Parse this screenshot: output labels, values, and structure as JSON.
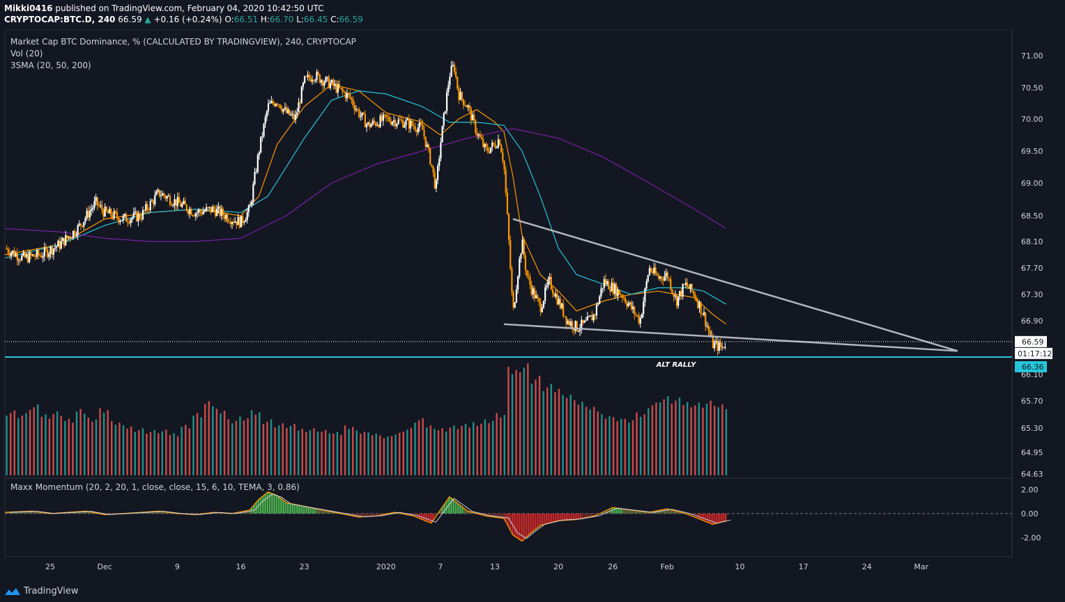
{
  "header": {
    "author": "Mikki0416",
    "published_text": "published on TradingView.com, February 04, 2020 10:42:50 UTC"
  },
  "symbol_line": {
    "symbol": "CRYPTOCAP:BTC.D, 240",
    "last": "66.59",
    "change": "+0.16 (+0.24%)",
    "o_label": "O:",
    "o_value": "66.51",
    "h_label": "H:",
    "h_value": "66.70",
    "l_label": "L:",
    "l_value": "66.45",
    "c_label": "C:",
    "c_value": "66.59"
  },
  "legend": {
    "main_title": "Market Cap BTC Dominance, % (CALCULATED BY TRADINGVIEW), 240, CRYPTOCAP",
    "vol": "Vol (20)",
    "sma": "3SMA (20, 50, 200)",
    "momentum": "Maxx Momentum (20, 2, 20, 1, close, close, 15, 6, 10, TEMA, 3, 0.86)"
  },
  "annotation": "ALT RALLY",
  "price_labels": {
    "last": "66.59",
    "countdown": "01:17:12",
    "level": "66.36"
  },
  "footer": {
    "brand": "TradingView"
  },
  "colors": {
    "background": "#131722",
    "up_candle": "#ffffff",
    "down_candle": "#ff9800",
    "sma20": "#ff9800",
    "sma50": "#26c6da",
    "sma200": "#7b1fa2",
    "support_line": "#26c6da",
    "trendline": "#b2b5be",
    "vol_up": "#26a69a",
    "vol_down": "#ef5350"
  },
  "chart_data": [
    {
      "type": "candlestick",
      "title": "Market Cap BTC Dominance, % (CALCULATED BY TRADINGVIEW), 240, CRYPTOCAP",
      "xlabel": "",
      "ylabel": "",
      "x_ticks": [
        "25",
        "Dec",
        "9",
        "16",
        "23",
        "2020",
        "7",
        "13",
        "20",
        "26",
        "Feb",
        "10",
        "17",
        "24",
        "Mar"
      ],
      "x_tick_days": [
        -6,
        0,
        8,
        15,
        22,
        31,
        37,
        43,
        50,
        56,
        62,
        70,
        77,
        84,
        90
      ],
      "x_range_days": [
        -11,
        100
      ],
      "y_ticks": [
        71.0,
        70.5,
        70.0,
        69.5,
        69.0,
        68.5,
        68.1,
        67.7,
        67.3,
        66.9,
        66.1,
        65.7,
        65.3,
        64.95,
        64.63
      ],
      "ylim": [
        64.63,
        71.3
      ],
      "close_path_day_value": [
        [
          -11,
          68.0
        ],
        [
          -9,
          67.85
        ],
        [
          -7,
          67.9
        ],
        [
          -5,
          68.05
        ],
        [
          -3,
          68.3
        ],
        [
          -1,
          68.7
        ],
        [
          0,
          68.55
        ],
        [
          2,
          68.45
        ],
        [
          4,
          68.5
        ],
        [
          6,
          68.85
        ],
        [
          8,
          68.7
        ],
        [
          10,
          68.55
        ],
        [
          12,
          68.6
        ],
        [
          14,
          68.45
        ],
        [
          15,
          68.4
        ],
        [
          16,
          68.6
        ],
        [
          17,
          69.5
        ],
        [
          18,
          70.2
        ],
        [
          19,
          70.3
        ],
        [
          20,
          70.1
        ],
        [
          21,
          70.0
        ],
        [
          22,
          70.6
        ],
        [
          23,
          70.7
        ],
        [
          25,
          70.55
        ],
        [
          27,
          70.35
        ],
        [
          28,
          70.1
        ],
        [
          29,
          69.9
        ],
        [
          31,
          70.0
        ],
        [
          33,
          69.95
        ],
        [
          35,
          69.85
        ],
        [
          36,
          69.3
        ],
        [
          36.5,
          68.9
        ],
        [
          37,
          69.6
        ],
        [
          38,
          70.7
        ],
        [
          38.5,
          70.85
        ],
        [
          39,
          70.4
        ],
        [
          40,
          70.2
        ],
        [
          41,
          69.8
        ],
        [
          42,
          69.5
        ],
        [
          43,
          69.6
        ],
        [
          43.5,
          69.7
        ],
        [
          44,
          69.3
        ],
        [
          44.5,
          68.2
        ],
        [
          45,
          67.0
        ],
        [
          45.5,
          67.6
        ],
        [
          46,
          68.1
        ],
        [
          46.5,
          67.6
        ],
        [
          47,
          67.4
        ],
        [
          48,
          67.1
        ],
        [
          49,
          67.5
        ],
        [
          50,
          67.2
        ],
        [
          51,
          66.9
        ],
        [
          52,
          66.8
        ],
        [
          53,
          66.85
        ],
        [
          54,
          67.0
        ],
        [
          55,
          67.5
        ],
        [
          56,
          67.4
        ],
        [
          57,
          67.3
        ],
        [
          58,
          67.1
        ],
        [
          59,
          66.9
        ],
        [
          60,
          67.7
        ],
        [
          61,
          67.55
        ],
        [
          62,
          67.6
        ],
        [
          63,
          67.2
        ],
        [
          64,
          67.45
        ],
        [
          65,
          67.3
        ],
        [
          66,
          67.0
        ],
        [
          67,
          66.55
        ],
        [
          68,
          66.5
        ],
        [
          68.5,
          66.59
        ]
      ],
      "series": [
        {
          "name": "SMA 20",
          "values_day_value": [
            [
              -11,
              67.9
            ],
            [
              -5,
              68.05
            ],
            [
              0,
              68.45
            ],
            [
              5,
              68.55
            ],
            [
              10,
              68.6
            ],
            [
              15,
              68.5
            ],
            [
              17,
              68.8
            ],
            [
              19,
              69.6
            ],
            [
              22,
              70.2
            ],
            [
              25,
              70.55
            ],
            [
              28,
              70.45
            ],
            [
              31,
              70.1
            ],
            [
              35,
              69.95
            ],
            [
              37,
              69.75
            ],
            [
              39,
              70.0
            ],
            [
              41,
              70.15
            ],
            [
              43,
              69.95
            ],
            [
              44,
              69.8
            ],
            [
              45,
              69.1
            ],
            [
              46,
              68.2
            ],
            [
              48,
              67.6
            ],
            [
              50,
              67.35
            ],
            [
              52,
              67.05
            ],
            [
              55,
              67.2
            ],
            [
              58,
              67.3
            ],
            [
              61,
              67.35
            ],
            [
              63,
              67.3
            ],
            [
              65,
              67.25
            ],
            [
              67,
              67.0
            ],
            [
              68.5,
              66.85
            ]
          ]
        },
        {
          "name": "SMA 50",
          "values_day_value": [
            [
              -11,
              67.85
            ],
            [
              -5,
              68.05
            ],
            [
              0,
              68.35
            ],
            [
              5,
              68.55
            ],
            [
              10,
              68.6
            ],
            [
              15,
              68.55
            ],
            [
              18,
              68.8
            ],
            [
              22,
              69.7
            ],
            [
              25,
              70.3
            ],
            [
              28,
              70.45
            ],
            [
              31,
              70.4
            ],
            [
              35,
              70.2
            ],
            [
              38,
              69.95
            ],
            [
              41,
              69.95
            ],
            [
              44,
              69.9
            ],
            [
              46,
              69.5
            ],
            [
              48,
              68.8
            ],
            [
              50,
              68.0
            ],
            [
              52,
              67.6
            ],
            [
              55,
              67.45
            ],
            [
              58,
              67.3
            ],
            [
              61,
              67.4
            ],
            [
              64,
              67.4
            ],
            [
              66,
              67.35
            ],
            [
              68.5,
              67.15
            ]
          ]
        },
        {
          "name": "SMA 200",
          "values_day_value": [
            [
              -11,
              68.3
            ],
            [
              -5,
              68.25
            ],
            [
              0,
              68.15
            ],
            [
              5,
              68.1
            ],
            [
              10,
              68.1
            ],
            [
              15,
              68.15
            ],
            [
              20,
              68.5
            ],
            [
              25,
              69.0
            ],
            [
              30,
              69.3
            ],
            [
              35,
              69.5
            ],
            [
              40,
              69.7
            ],
            [
              45,
              69.85
            ],
            [
              50,
              69.7
            ],
            [
              55,
              69.4
            ],
            [
              60,
              69.0
            ],
            [
              65,
              68.6
            ],
            [
              68.5,
              68.3
            ]
          ]
        }
      ],
      "trendlines_day_value": [
        {
          "name": "upper",
          "from": [
            45,
            68.45
          ],
          "to": [
            94,
            66.45
          ]
        },
        {
          "name": "lower",
          "from": [
            44,
            66.85
          ],
          "to": [
            94,
            66.45
          ]
        }
      ],
      "horizontal_level": 66.36,
      "last_price": 66.59
    },
    {
      "type": "bar",
      "title": "Vol (20)",
      "values_relative": [
        0.58,
        0.55,
        0.62,
        0.55,
        0.57,
        0.5,
        0.58,
        0.52,
        0.6,
        0.48,
        0.44,
        0.42,
        0.4,
        0.4,
        0.38,
        0.45,
        0.55,
        0.65,
        0.6,
        0.5,
        0.52,
        0.57,
        0.5,
        0.46,
        0.45,
        0.42,
        0.42,
        0.4,
        0.38,
        0.45,
        0.4,
        0.38,
        0.35,
        0.38,
        0.42,
        0.5,
        0.45,
        0.42,
        0.44,
        0.45,
        0.48,
        0.5,
        0.55,
        0.95,
        1.0,
        0.88,
        0.8,
        0.78,
        0.72,
        0.65,
        0.6,
        0.55,
        0.52,
        0.5,
        0.55,
        0.65,
        0.7,
        0.68,
        0.66,
        0.65,
        0.66,
        0.62
      ],
      "ylim": [
        0,
        1
      ]
    },
    {
      "type": "line",
      "title": "Maxx Momentum (20, 2, 20, 1, close, close, 15, 6, 10, TEMA, 3, 0.86)",
      "y_ticks": [
        2.0,
        0.0,
        -2.0
      ],
      "ylim": [
        -3.6,
        2.6
      ],
      "values_day_value": [
        [
          -11,
          0.1
        ],
        [
          -8,
          0.2
        ],
        [
          -6,
          0.0
        ],
        [
          -4,
          0.1
        ],
        [
          -2,
          0.2
        ],
        [
          0,
          -0.1
        ],
        [
          2,
          0.0
        ],
        [
          4,
          0.1
        ],
        [
          6,
          0.2
        ],
        [
          8,
          0.0
        ],
        [
          10,
          -0.1
        ],
        [
          12,
          0.1
        ],
        [
          14,
          0.0
        ],
        [
          16,
          0.3
        ],
        [
          17,
          1.2
        ],
        [
          18,
          1.8
        ],
        [
          19,
          1.5
        ],
        [
          20,
          0.9
        ],
        [
          22,
          0.6
        ],
        [
          24,
          0.3
        ],
        [
          26,
          0.0
        ],
        [
          28,
          -0.3
        ],
        [
          30,
          -0.2
        ],
        [
          32,
          0.1
        ],
        [
          34,
          -0.2
        ],
        [
          36,
          -0.8
        ],
        [
          37,
          0.3
        ],
        [
          38,
          1.4
        ],
        [
          39,
          0.8
        ],
        [
          40,
          0.2
        ],
        [
          42,
          -0.2
        ],
        [
          44,
          -0.4
        ],
        [
          45,
          -1.8
        ],
        [
          46,
          -2.3
        ],
        [
          47,
          -1.6
        ],
        [
          48,
          -1.0
        ],
        [
          50,
          -0.6
        ],
        [
          52,
          -0.5
        ],
        [
          54,
          -0.2
        ],
        [
          56,
          0.5
        ],
        [
          58,
          0.3
        ],
        [
          60,
          0.1
        ],
        [
          62,
          0.4
        ],
        [
          64,
          0.0
        ],
        [
          66,
          -0.6
        ],
        [
          67,
          -0.9
        ],
        [
          68.5,
          -0.6
        ]
      ]
    }
  ]
}
